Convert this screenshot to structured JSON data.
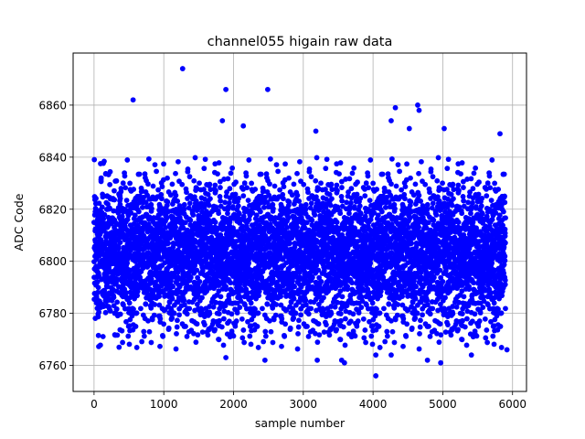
{
  "chart_data": {
    "type": "scatter",
    "title": "channel055 higain raw data",
    "xlabel": "sample number",
    "ylabel": "ADC Code",
    "xlim": [
      -300,
      6200
    ],
    "ylim": [
      6750,
      6880
    ],
    "xticks": [
      0,
      1000,
      2000,
      3000,
      4000,
      5000,
      6000
    ],
    "yticks": [
      6760,
      6780,
      6800,
      6820,
      6840,
      6860
    ],
    "grid": true,
    "marker_color": "#0000ff",
    "n_samples": 5900,
    "center": 6803,
    "spread_std": 14,
    "typical_min": 6766,
    "typical_max": 6840,
    "outliers": [
      {
        "x": 1270,
        "y": 6874
      },
      {
        "x": 560,
        "y": 6862
      },
      {
        "x": 1890,
        "y": 6866
      },
      {
        "x": 2490,
        "y": 6866
      },
      {
        "x": 1840,
        "y": 6854
      },
      {
        "x": 2140,
        "y": 6852
      },
      {
        "x": 3180,
        "y": 6850
      },
      {
        "x": 4320,
        "y": 6859
      },
      {
        "x": 4640,
        "y": 6860
      },
      {
        "x": 4660,
        "y": 6858
      },
      {
        "x": 4260,
        "y": 6854
      },
      {
        "x": 4520,
        "y": 6851
      },
      {
        "x": 5020,
        "y": 6851
      },
      {
        "x": 5820,
        "y": 6849
      },
      {
        "x": 4040,
        "y": 6756
      },
      {
        "x": 4970,
        "y": 6761
      },
      {
        "x": 3590,
        "y": 6761
      },
      {
        "x": 3550,
        "y": 6762
      },
      {
        "x": 1890,
        "y": 6763
      },
      {
        "x": 2450,
        "y": 6762
      },
      {
        "x": 3200,
        "y": 6762
      },
      {
        "x": 4040,
        "y": 6764
      },
      {
        "x": 4260,
        "y": 6764
      },
      {
        "x": 5410,
        "y": 6764
      },
      {
        "x": 5920,
        "y": 6766
      },
      {
        "x": 4780,
        "y": 6762
      }
    ]
  }
}
